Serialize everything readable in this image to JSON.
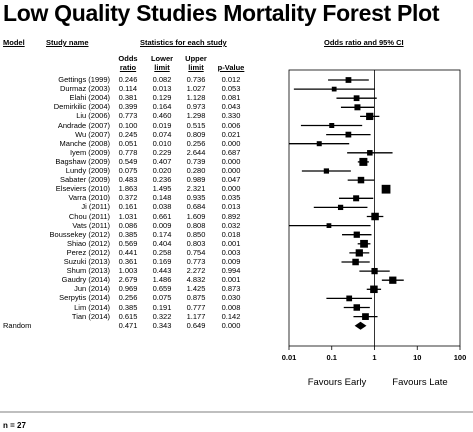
{
  "title": "Low Quality Studies Mortality Forest Plot",
  "headers": {
    "model": "Model",
    "study_name": "Study name",
    "stats": "Statistics for each study",
    "or_ci": "Odds ratio and 95% CI",
    "odds": "Odds",
    "ratio": "ratio",
    "lower": "Lower",
    "lower2": "limit",
    "upper": "Upper",
    "upper2": "limit",
    "pvalue": "p-Value"
  },
  "model_label": "Random",
  "favours_left": "Favours Early",
  "favours_right": "Favours Late",
  "footnote": "n = 27",
  "chart_data": {
    "type": "forest",
    "x_scale": "log",
    "xlim": [
      0.01,
      100
    ],
    "x_ticks": [
      "0.01",
      "0.1",
      "1",
      "10",
      "100"
    ],
    "studies": [
      {
        "name": "Gettings (1999)",
        "or": "0.246",
        "lower": "0.082",
        "upper": "0.736",
        "p": "0.012"
      },
      {
        "name": "Durmaz (2003)",
        "or": "0.114",
        "lower": "0.013",
        "upper": "1.027",
        "p": "0.053"
      },
      {
        "name": "Elahi (2004)",
        "or": "0.381",
        "lower": "0.129",
        "upper": "1.128",
        "p": "0.081"
      },
      {
        "name": "Demirkilic (2004)",
        "or": "0.399",
        "lower": "0.164",
        "upper": "0.973",
        "p": "0.043"
      },
      {
        "name": "Liu (2006)",
        "or": "0.773",
        "lower": "0.460",
        "upper": "1.298",
        "p": "0.330"
      },
      {
        "name": "Andrade (2007)",
        "or": "0.100",
        "lower": "0.019",
        "upper": "0.515",
        "p": "0.006"
      },
      {
        "name": "Wu (2007)",
        "or": "0.245",
        "lower": "0.074",
        "upper": "0.809",
        "p": "0.021"
      },
      {
        "name": "Manche (2008)",
        "or": "0.051",
        "lower": "0.010",
        "upper": "0.256",
        "p": "0.000"
      },
      {
        "name": "Iyem (2009)",
        "or": "0.778",
        "lower": "0.229",
        "upper": "2.644",
        "p": "0.687"
      },
      {
        "name": "Bagshaw (2009)",
        "or": "0.549",
        "lower": "0.407",
        "upper": "0.739",
        "p": "0.000"
      },
      {
        "name": "Lundy (2009)",
        "or": "0.075",
        "lower": "0.020",
        "upper": "0.280",
        "p": "0.000"
      },
      {
        "name": "Sabater (2009)",
        "or": "0.483",
        "lower": "0.236",
        "upper": "0.989",
        "p": "0.047"
      },
      {
        "name": "Elseviers (2010)",
        "or": "1.863",
        "lower": "1.495",
        "upper": "2.321",
        "p": "0.000"
      },
      {
        "name": "Varra (2010)",
        "or": "0.372",
        "lower": "0.148",
        "upper": "0.935",
        "p": "0.035"
      },
      {
        "name": "Ji (2011)",
        "or": "0.161",
        "lower": "0.038",
        "upper": "0.684",
        "p": "0.013"
      },
      {
        "name": "Chou (2011)",
        "or": "1.031",
        "lower": "0.661",
        "upper": "1.609",
        "p": "0.892"
      },
      {
        "name": "Vats (2011)",
        "or": "0.086",
        "lower": "0.009",
        "upper": "0.808",
        "p": "0.032"
      },
      {
        "name": "Boussekey (2012)",
        "or": "0.385",
        "lower": "0.174",
        "upper": "0.850",
        "p": "0.018"
      },
      {
        "name": "Shiao (2012)",
        "or": "0.569",
        "lower": "0.404",
        "upper": "0.803",
        "p": "0.001"
      },
      {
        "name": "Perez (2012)",
        "or": "0.441",
        "lower": "0.258",
        "upper": "0.754",
        "p": "0.003"
      },
      {
        "name": "Suzuki (2013)",
        "or": "0.361",
        "lower": "0.169",
        "upper": "0.773",
        "p": "0.009"
      },
      {
        "name": "Shum (2013)",
        "or": "1.003",
        "lower": "0.443",
        "upper": "2.272",
        "p": "0.994"
      },
      {
        "name": "Gaudry (2014)",
        "or": "2.679",
        "lower": "1.486",
        "upper": "4.832",
        "p": "0.001"
      },
      {
        "name": "Jun (2014)",
        "or": "0.969",
        "lower": "0.659",
        "upper": "1.425",
        "p": "0.873"
      },
      {
        "name": "Serpytis (2014)",
        "or": "0.256",
        "lower": "0.075",
        "upper": "0.875",
        "p": "0.030"
      },
      {
        "name": "Lim (2014)",
        "or": "0.385",
        "lower": "0.191",
        "upper": "0.777",
        "p": "0.008"
      },
      {
        "name": "Tian (2014)",
        "or": "0.615",
        "lower": "0.322",
        "upper": "1.177",
        "p": "0.142"
      }
    ],
    "pooled": {
      "or": "0.471",
      "lower": "0.343",
      "upper": "0.649",
      "p": "0.000"
    },
    "study_weights": [
      0.55,
      0.35,
      0.55,
      0.6,
      0.85,
      0.4,
      0.55,
      0.4,
      0.5,
      1.0,
      0.45,
      0.7,
      1.15,
      0.6,
      0.45,
      0.9,
      0.35,
      0.65,
      0.95,
      0.85,
      0.7,
      0.65,
      0.85,
      0.9,
      0.55,
      0.7,
      0.75
    ]
  }
}
